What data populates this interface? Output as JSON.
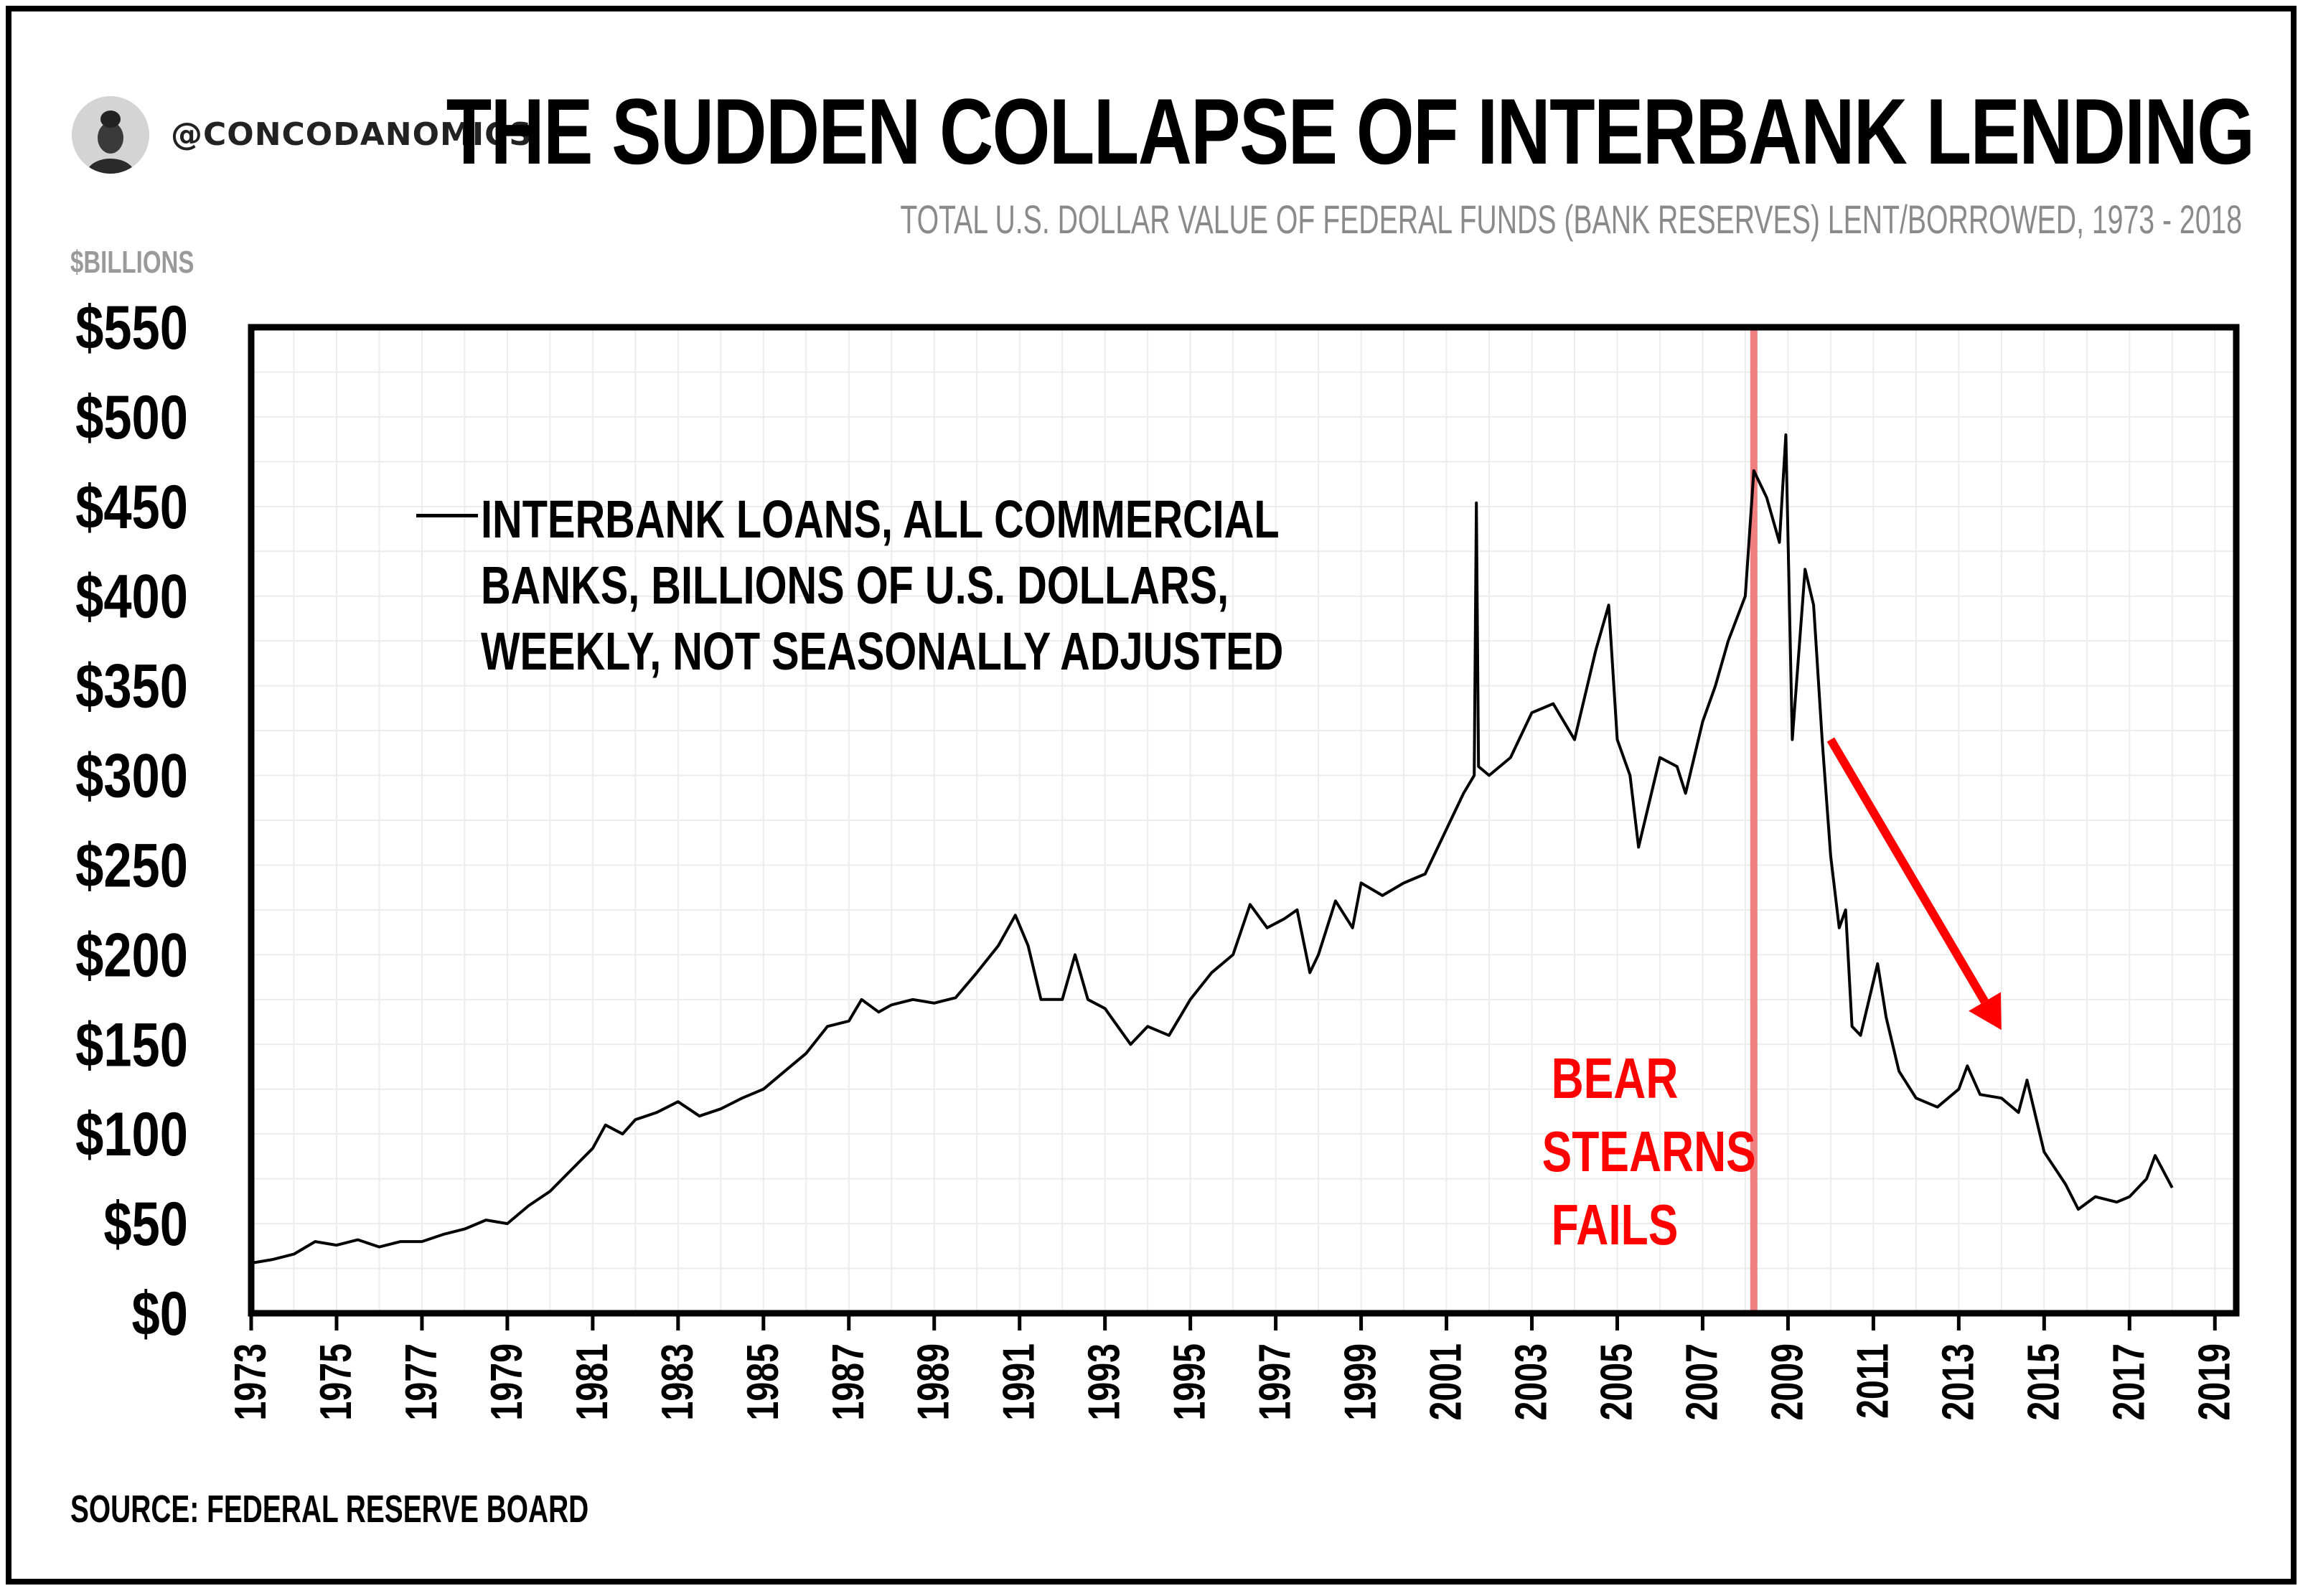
{
  "header": {
    "handle": "@CONCODANOMICS",
    "title": "THE SUDDEN COLLAPSE OF INTERBANK LENDING",
    "subtitle": "TOTAL U.S. DOLLAR VALUE OF FEDERAL FUNDS (BANK RESERVES) LENT/BORROWED, 1973 - 2018",
    "unit_label": "$BILLIONS"
  },
  "footer": {
    "source": "SOURCE: FEDERAL RESERVE BOARD"
  },
  "chart_data": {
    "type": "line",
    "title": "THE SUDDEN COLLAPSE OF INTERBANK LENDING",
    "subtitle": "TOTAL U.S. DOLLAR VALUE OF FEDERAL FUNDS (BANK RESERVES) LENT/BORROWED, 1973 - 2018",
    "ylabel": "$BILLIONS",
    "xlabel": "",
    "xlim": [
      1973,
      2019.5
    ],
    "ylim": [
      0,
      550
    ],
    "grid": true,
    "legend_position": "top-left",
    "y_ticks": [
      "$0",
      "$50",
      "$100",
      "$150",
      "$200",
      "$250",
      "$300",
      "$350",
      "$400",
      "$450",
      "$500",
      "$550"
    ],
    "y_tick_values": [
      0,
      50,
      100,
      150,
      200,
      250,
      300,
      350,
      400,
      450,
      500,
      550
    ],
    "x_ticks": [
      "1973",
      "1975",
      "1977",
      "1979",
      "1981",
      "1983",
      "1985",
      "1987",
      "1989",
      "1991",
      "1993",
      "1995",
      "1997",
      "1999",
      "2001",
      "2003",
      "2005",
      "2007",
      "2009",
      "2011",
      "2013",
      "2015",
      "2017",
      "2019"
    ],
    "x_tick_values": [
      1973,
      1975,
      1977,
      1979,
      1981,
      1983,
      1985,
      1987,
      1989,
      1991,
      1993,
      1995,
      1997,
      1999,
      2001,
      2003,
      2005,
      2007,
      2009,
      2011,
      2013,
      2015,
      2017,
      2019
    ],
    "series": [
      {
        "name": "INTERBANK LOANS, ALL COMMERCIAL BANKS, BILLIONS OF U.S. DOLLARS, WEEKLY, NOT SEASONALLY ADJUSTED",
        "legend_lines": [
          "INTERBANK LOANS, ALL COMMERCIAL",
          "BANKS, BILLIONS OF U.S. DOLLARS,",
          "WEEKLY, NOT SEASONALLY ADJUSTED"
        ],
        "color": "#000000",
        "points": [
          [
            1973.0,
            28
          ],
          [
            1973.5,
            30
          ],
          [
            1974.0,
            33
          ],
          [
            1974.5,
            40
          ],
          [
            1975.0,
            38
          ],
          [
            1975.5,
            41
          ],
          [
            1976.0,
            37
          ],
          [
            1976.5,
            40
          ],
          [
            1977.0,
            40
          ],
          [
            1977.5,
            44
          ],
          [
            1978.0,
            47
          ],
          [
            1978.5,
            52
          ],
          [
            1979.0,
            50
          ],
          [
            1979.5,
            60
          ],
          [
            1980.0,
            68
          ],
          [
            1980.5,
            80
          ],
          [
            1981.0,
            92
          ],
          [
            1981.3,
            105
          ],
          [
            1981.7,
            100
          ],
          [
            1982.0,
            108
          ],
          [
            1982.5,
            112
          ],
          [
            1983.0,
            118
          ],
          [
            1983.5,
            110
          ],
          [
            1984.0,
            114
          ],
          [
            1984.5,
            120
          ],
          [
            1985.0,
            125
          ],
          [
            1985.5,
            135
          ],
          [
            1986.0,
            145
          ],
          [
            1986.5,
            160
          ],
          [
            1987.0,
            163
          ],
          [
            1987.3,
            175
          ],
          [
            1987.7,
            168
          ],
          [
            1988.0,
            172
          ],
          [
            1988.5,
            175
          ],
          [
            1989.0,
            173
          ],
          [
            1989.5,
            176
          ],
          [
            1990.0,
            190
          ],
          [
            1990.5,
            205
          ],
          [
            1990.9,
            222
          ],
          [
            1991.2,
            205
          ],
          [
            1991.5,
            175
          ],
          [
            1992.0,
            175
          ],
          [
            1992.3,
            200
          ],
          [
            1992.6,
            175
          ],
          [
            1993.0,
            170
          ],
          [
            1993.3,
            160
          ],
          [
            1993.6,
            150
          ],
          [
            1994.0,
            160
          ],
          [
            1994.5,
            155
          ],
          [
            1995.0,
            175
          ],
          [
            1995.5,
            190
          ],
          [
            1996.0,
            200
          ],
          [
            1996.4,
            228
          ],
          [
            1996.8,
            215
          ],
          [
            1997.2,
            220
          ],
          [
            1997.5,
            225
          ],
          [
            1997.8,
            190
          ],
          [
            1998.0,
            200
          ],
          [
            1998.4,
            230
          ],
          [
            1998.8,
            215
          ],
          [
            1999.0,
            240
          ],
          [
            1999.5,
            233
          ],
          [
            2000.0,
            240
          ],
          [
            2000.5,
            245
          ],
          [
            2001.0,
            270
          ],
          [
            2001.4,
            290
          ],
          [
            2001.65,
            300
          ],
          [
            2001.7,
            452
          ],
          [
            2001.75,
            305
          ],
          [
            2002.0,
            300
          ],
          [
            2002.5,
            310
          ],
          [
            2003.0,
            335
          ],
          [
            2003.5,
            340
          ],
          [
            2004.0,
            320
          ],
          [
            2004.5,
            370
          ],
          [
            2004.8,
            395
          ],
          [
            2005.0,
            320
          ],
          [
            2005.3,
            300
          ],
          [
            2005.5,
            260
          ],
          [
            2005.8,
            290
          ],
          [
            2006.0,
            310
          ],
          [
            2006.4,
            305
          ],
          [
            2006.6,
            290
          ],
          [
            2007.0,
            330
          ],
          [
            2007.3,
            350
          ],
          [
            2007.6,
            375
          ],
          [
            2008.0,
            400
          ],
          [
            2008.2,
            470
          ],
          [
            2008.5,
            455
          ],
          [
            2008.8,
            430
          ],
          [
            2008.95,
            490
          ],
          [
            2009.1,
            320
          ],
          [
            2009.4,
            415
          ],
          [
            2009.6,
            395
          ],
          [
            2009.8,
            320
          ],
          [
            2010.0,
            255
          ],
          [
            2010.2,
            215
          ],
          [
            2010.35,
            225
          ],
          [
            2010.5,
            160
          ],
          [
            2010.7,
            155
          ],
          [
            2010.9,
            175
          ],
          [
            2011.1,
            195
          ],
          [
            2011.3,
            165
          ],
          [
            2011.6,
            135
          ],
          [
            2012.0,
            120
          ],
          [
            2012.5,
            115
          ],
          [
            2013.0,
            125
          ],
          [
            2013.2,
            138
          ],
          [
            2013.5,
            122
          ],
          [
            2014.0,
            120
          ],
          [
            2014.4,
            112
          ],
          [
            2014.6,
            130
          ],
          [
            2015.0,
            90
          ],
          [
            2015.5,
            72
          ],
          [
            2015.8,
            58
          ],
          [
            2016.2,
            65
          ],
          [
            2016.7,
            62
          ],
          [
            2017.0,
            65
          ],
          [
            2017.4,
            75
          ],
          [
            2017.6,
            88
          ],
          [
            2018.0,
            70
          ]
        ]
      }
    ],
    "annotations": [
      {
        "type": "vertical_line",
        "x": 2008.2,
        "color": "#f08080"
      },
      {
        "type": "text",
        "lines": [
          "BEAR",
          "STEARNS",
          "FAILS"
        ],
        "color": "#ff0000"
      },
      {
        "type": "arrow",
        "from": [
          2010.0,
          320
        ],
        "to": [
          2014.0,
          158
        ],
        "color": "#ff0000"
      }
    ]
  }
}
